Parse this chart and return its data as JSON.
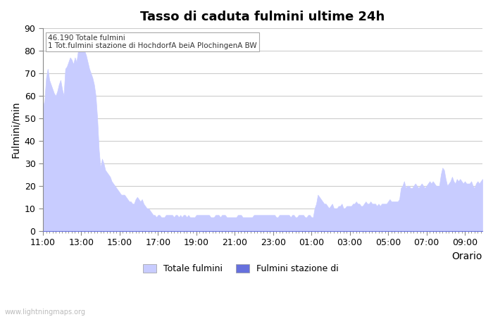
{
  "title": "Tasso di caduta fulmini ultime 24h",
  "xlabel": "Orario",
  "ylabel": "Fulmini/min",
  "annotation_line1": "46.190 Totale fulmini",
  "annotation_line2": "1 Tot.fulmini stazione di HochdorfA beiA PlochingenA BW",
  "watermark": "www.lightningmaps.org",
  "legend_label1": "Totale fulmini",
  "legend_label2": "Fulmini stazione di",
  "color_fill1": "#c8ccff",
  "color_fill2": "#6670dd",
  "ylim": [
    0,
    90
  ],
  "yticks": [
    0,
    10,
    20,
    30,
    40,
    50,
    60,
    70,
    80,
    90
  ],
  "x_labels": [
    "11:00",
    "13:00",
    "15:00",
    "17:00",
    "19:00",
    "21:00",
    "23:00",
    "01:00",
    "03:00",
    "05:00",
    "07:00",
    "09:00"
  ],
  "x_positions": [
    0,
    24,
    48,
    72,
    96,
    120,
    144,
    168,
    192,
    216,
    240,
    264
  ],
  "n_points": 276,
  "background_color": "#ffffff",
  "grid_color": "#cccccc",
  "total_data": [
    55,
    58,
    68,
    72,
    67,
    65,
    63,
    61,
    60,
    62,
    65,
    67,
    63,
    60,
    72,
    73,
    75,
    77,
    76,
    74,
    77,
    75,
    80,
    82,
    85,
    83,
    80,
    78,
    75,
    72,
    70,
    68,
    65,
    60,
    50,
    36,
    28,
    32,
    30,
    27,
    26,
    25,
    24,
    22,
    21,
    20,
    19,
    18,
    17,
    16,
    16,
    16,
    15,
    14,
    13,
    13,
    12,
    12,
    14,
    15,
    14,
    13,
    14,
    12,
    11,
    10,
    10,
    9,
    8,
    7,
    7,
    6,
    7,
    7,
    6,
    6,
    6,
    7,
    7,
    7,
    7,
    7,
    6,
    7,
    7,
    6,
    7,
    6,
    7,
    7,
    6,
    7,
    6,
    6,
    6,
    6,
    7,
    7,
    7,
    7,
    7,
    7,
    7,
    7,
    7,
    6,
    6,
    6,
    7,
    7,
    7,
    6,
    7,
    7,
    7,
    6,
    6,
    6,
    6,
    6,
    6,
    6,
    7,
    7,
    7,
    6,
    6,
    6,
    6,
    6,
    6,
    6,
    7,
    7,
    7,
    7,
    7,
    7,
    7,
    7,
    7,
    7,
    7,
    7,
    7,
    7,
    6,
    6,
    7,
    7,
    7,
    7,
    7,
    7,
    7,
    6,
    7,
    7,
    6,
    6,
    7,
    7,
    7,
    7,
    6,
    6,
    7,
    7,
    6,
    6,
    10,
    12,
    16,
    15,
    14,
    13,
    12,
    12,
    11,
    10,
    11,
    12,
    10,
    10,
    10,
    11,
    11,
    12,
    10,
    10,
    11,
    11,
    11,
    11,
    12,
    12,
    13,
    12,
    12,
    11,
    11,
    12,
    13,
    12,
    12,
    13,
    12,
    12,
    12,
    11,
    12,
    11,
    12,
    12,
    12,
    12,
    13,
    14,
    13,
    13,
    13,
    13,
    13,
    14,
    19,
    20,
    22,
    19,
    20,
    20,
    19,
    19,
    20,
    21,
    20,
    19,
    20,
    21,
    20,
    19,
    20,
    21,
    22,
    21,
    22,
    21,
    20,
    20,
    20,
    25,
    28,
    27,
    23,
    20,
    21,
    22,
    24,
    22,
    21,
    23,
    22,
    23,
    22,
    21,
    22,
    21,
    21,
    21,
    22,
    20,
    19,
    21,
    22,
    21,
    22,
    23
  ],
  "station_data": [
    0,
    0,
    0,
    0,
    0,
    0,
    0,
    0,
    0,
    0,
    0,
    0,
    0,
    0,
    0,
    0,
    0,
    0,
    0,
    0,
    0,
    0,
    0,
    0,
    0,
    0,
    0,
    0,
    0,
    0,
    0,
    0,
    0,
    0,
    0,
    0,
    0,
    0,
    0,
    0,
    0,
    0,
    0,
    0,
    0,
    0,
    0,
    0,
    0,
    0,
    0,
    0,
    0,
    0,
    0,
    0,
    0,
    0,
    0,
    0,
    0,
    0,
    0,
    0,
    0,
    0,
    0,
    0,
    0,
    0,
    0,
    0,
    0,
    0,
    0,
    0,
    0,
    0,
    0,
    0,
    0,
    0,
    0,
    0,
    0,
    0,
    0,
    0,
    0,
    0,
    0,
    0,
    0,
    0,
    0,
    0,
    0,
    0,
    0,
    0,
    0,
    0,
    0,
    0,
    0,
    0,
    0,
    0,
    0,
    0,
    0,
    0,
    0,
    0,
    0,
    0,
    0,
    0,
    0,
    0,
    0,
    0,
    0,
    0,
    0,
    0,
    0,
    0,
    0,
    0,
    0,
    0,
    0,
    0,
    0,
    0,
    0,
    0,
    0,
    0,
    0,
    0,
    0,
    0,
    0,
    0,
    0,
    0,
    0,
    0,
    0,
    0,
    0,
    0,
    0,
    0,
    0,
    0,
    0,
    0,
    0,
    0,
    0,
    0,
    0,
    0,
    0,
    0,
    0,
    0,
    0,
    0,
    0,
    0,
    0,
    0,
    0,
    0,
    0,
    0,
    0,
    0,
    0,
    0,
    0,
    0,
    0,
    0,
    0,
    0,
    0,
    0,
    0,
    0,
    0,
    0,
    0,
    0,
    0,
    0,
    0,
    0,
    0,
    0,
    0,
    0,
    0,
    0,
    0,
    0,
    0,
    0,
    0,
    0,
    0,
    0,
    0,
    0,
    0,
    0,
    0,
    0,
    0,
    0,
    0,
    0,
    0,
    0,
    0,
    0,
    0,
    0,
    0,
    0,
    0,
    0,
    0,
    0,
    0,
    0,
    0,
    0,
    0,
    0,
    0,
    0,
    0,
    0,
    0,
    0,
    0,
    0,
    0,
    0,
    0,
    0,
    0,
    0,
    0,
    0,
    0,
    0,
    0,
    0,
    0,
    0,
    0,
    0,
    0,
    0,
    0,
    0,
    0,
    0,
    0,
    0
  ]
}
